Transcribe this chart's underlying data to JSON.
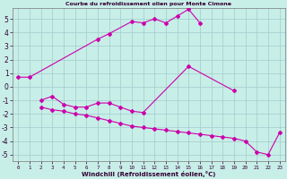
{
  "title": "Courbe du refroidissement olien pour Monte Cimone",
  "xlabel": "Windchill (Refroidissement éolien,°C)",
  "xlim": [
    -0.5,
    23.5
  ],
  "ylim": [
    -5.5,
    5.8
  ],
  "yticks": [
    -5,
    -4,
    -3,
    -2,
    -1,
    0,
    1,
    2,
    3,
    4,
    5
  ],
  "xticks": [
    0,
    1,
    2,
    3,
    4,
    5,
    6,
    7,
    8,
    9,
    10,
    11,
    12,
    13,
    14,
    15,
    16,
    17,
    18,
    19,
    20,
    21,
    22,
    23
  ],
  "bg_color": "#c8eee8",
  "grid_color": "#a0cccc",
  "line_color": "#cc00aa",
  "series": [
    {
      "x": [
        0,
        1,
        7,
        8,
        10,
        11,
        12,
        13,
        14,
        15,
        16
      ],
      "y": [
        0.7,
        0.7,
        3.5,
        3.9,
        4.8,
        4.7,
        5.0,
        4.7,
        5.2,
        5.7,
        4.7
      ]
    },
    {
      "x": [
        2,
        3,
        4,
        5,
        6,
        7,
        8,
        9,
        10,
        11,
        15,
        19
      ],
      "y": [
        -1.0,
        -0.7,
        -1.3,
        -1.5,
        -1.5,
        -1.2,
        -1.2,
        -1.5,
        -1.8,
        -1.9,
        1.5,
        -0.3
      ]
    },
    {
      "x": [
        2,
        3,
        4,
        5,
        6,
        7,
        8,
        9,
        10,
        11,
        12,
        13,
        14,
        15,
        16,
        17,
        18,
        19,
        20,
        21,
        22,
        23
      ],
      "y": [
        -1.5,
        -1.7,
        -1.8,
        -2.0,
        -2.1,
        -2.3,
        -2.5,
        -2.7,
        -2.9,
        -3.0,
        -3.1,
        -3.2,
        -3.3,
        -3.4,
        -3.5,
        -3.6,
        -3.7,
        -3.8,
        -4.0,
        -4.8,
        -5.0,
        -3.4
      ]
    }
  ]
}
